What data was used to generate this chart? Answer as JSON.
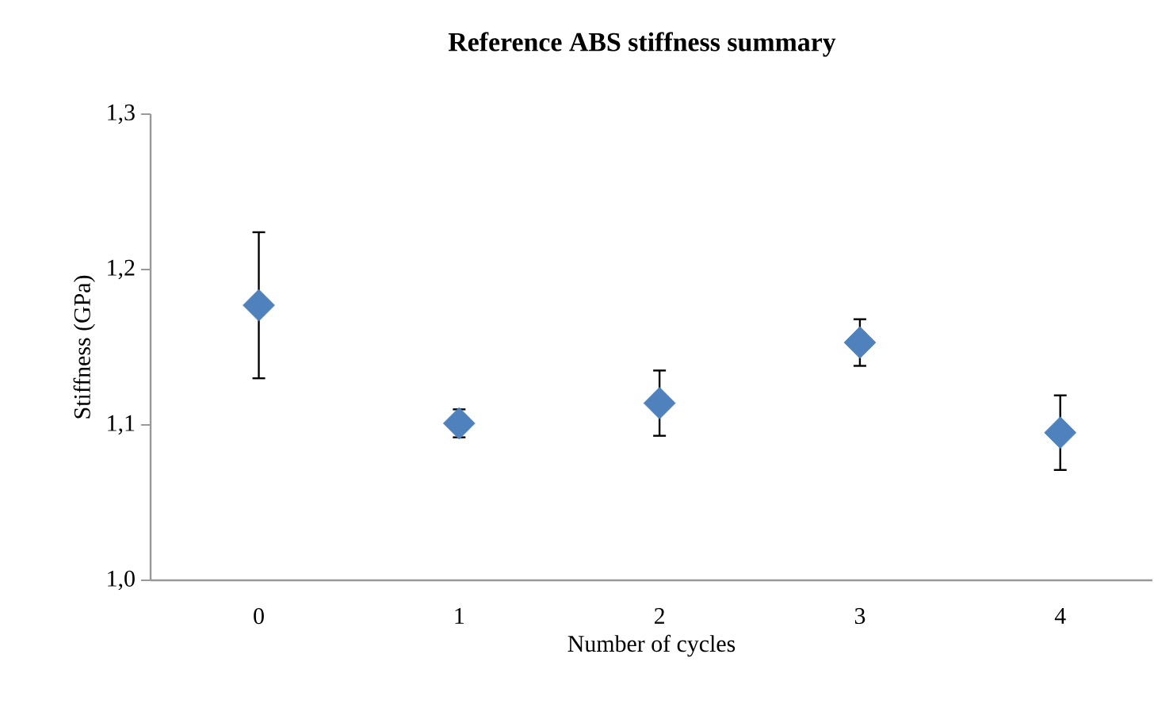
{
  "chart_data": {
    "type": "scatter",
    "title": "Reference ABS stiffness summary",
    "xlabel": "Number of cycles",
    "ylabel": "Stiffness (GPa)",
    "categories": [
      "0",
      "1",
      "2",
      "3",
      "4"
    ],
    "values": [
      1.177,
      1.101,
      1.114,
      1.153,
      1.095
    ],
    "errors": [
      0.047,
      0.009,
      0.021,
      0.015,
      0.024
    ],
    "color": "#4f81bd",
    "marker": "diamond",
    "ylim": [
      1.0,
      1.3
    ],
    "yticks": [
      {
        "value": 1.0,
        "label": "1,0"
      },
      {
        "value": 1.1,
        "label": "1,1"
      },
      {
        "value": 1.2,
        "label": "1,2"
      },
      {
        "value": 1.3,
        "label": "1,3"
      }
    ],
    "grid": false
  }
}
